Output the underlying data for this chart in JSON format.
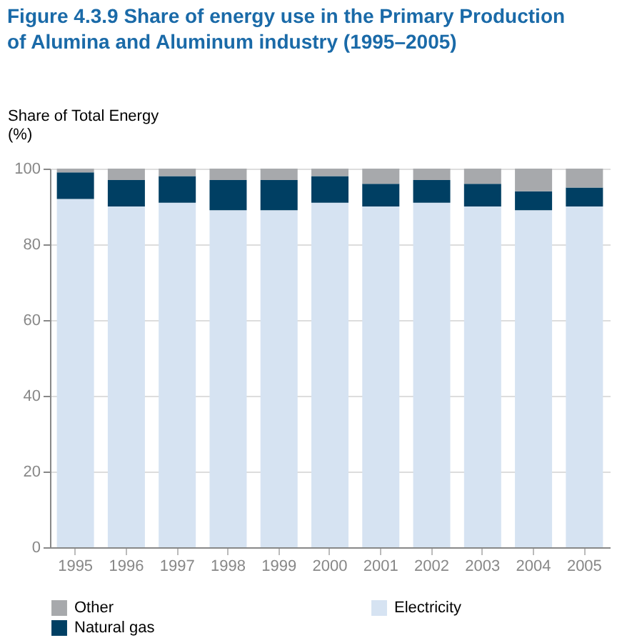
{
  "chart_data": {
    "type": "bar",
    "stacked": true,
    "title": "Figure 4.3.9 Share of energy use in the Primary Production of Alumina and Aluminum industry (1995–2005)",
    "ylabel": "Share of Total Energy\n(%)",
    "categories": [
      "1995",
      "1996",
      "1997",
      "1998",
      "1999",
      "2000",
      "2001",
      "2002",
      "2003",
      "2004",
      "2005"
    ],
    "series": [
      {
        "name": "Electricity",
        "color": "#d6e3f2",
        "values": [
          92,
          90,
          91,
          89,
          89,
          91,
          90,
          91,
          90,
          89,
          90
        ]
      },
      {
        "name": "Natural gas",
        "color": "#003f63",
        "values": [
          7,
          7,
          7,
          8,
          8,
          7,
          6,
          6,
          6,
          5,
          5
        ]
      },
      {
        "name": "Other",
        "color": "#a7a9ac",
        "values": [
          1,
          3,
          2,
          3,
          3,
          2,
          4,
          3,
          4,
          6,
          5
        ]
      }
    ],
    "ylim": [
      0,
      100
    ],
    "yticks": [
      0,
      20,
      40,
      60,
      80,
      100
    ],
    "grid": "y",
    "legend": "bottom"
  }
}
